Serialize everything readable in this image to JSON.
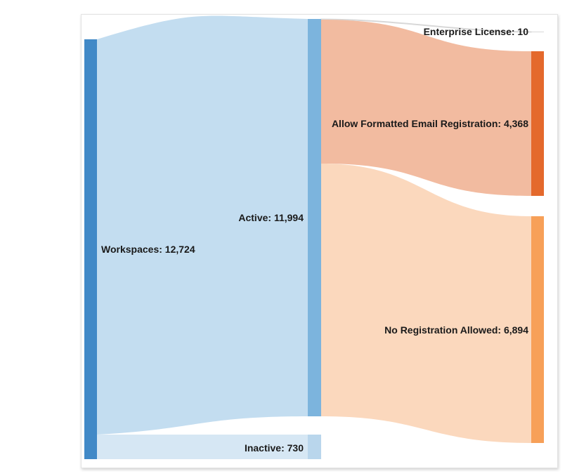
{
  "colors": {
    "workspaces": "#4189c7",
    "active": "#7cb4dd",
    "inactive": "#b9d6ec",
    "enterprise": "#d8d8d8",
    "allow_formatted": "#e4692c",
    "no_registration": "#f7a058",
    "flow_workspaces_active": "#c3ddf0",
    "flow_workspaces_inactive": "#d6e7f4",
    "flow_active_allow": "#f2bba0",
    "flow_active_none": "#fbd8bd"
  },
  "nodes": [
    {
      "id": "workspaces",
      "label": "Workspaces: 12,724",
      "value": 12724
    },
    {
      "id": "active",
      "label": "Active: 11,994",
      "value": 11994
    },
    {
      "id": "inactive",
      "label": "Inactive: 730",
      "value": 730
    },
    {
      "id": "enterprise",
      "label": "Enterprise License: 10",
      "value": 10
    },
    {
      "id": "allow_formatted",
      "label": "Allow Formatted Email Registration: 4,368",
      "value": 4368
    },
    {
      "id": "no_registration",
      "label": "No Registration Allowed: 6,894",
      "value": 6894
    }
  ],
  "links": [
    {
      "source": "workspaces",
      "target": "active",
      "value": 11994
    },
    {
      "source": "workspaces",
      "target": "inactive",
      "value": 730
    },
    {
      "source": "active",
      "target": "enterprise",
      "value": 10
    },
    {
      "source": "active",
      "target": "allow_formatted",
      "value": 4368
    },
    {
      "source": "active",
      "target": "no_registration",
      "value": 6894
    }
  ]
}
